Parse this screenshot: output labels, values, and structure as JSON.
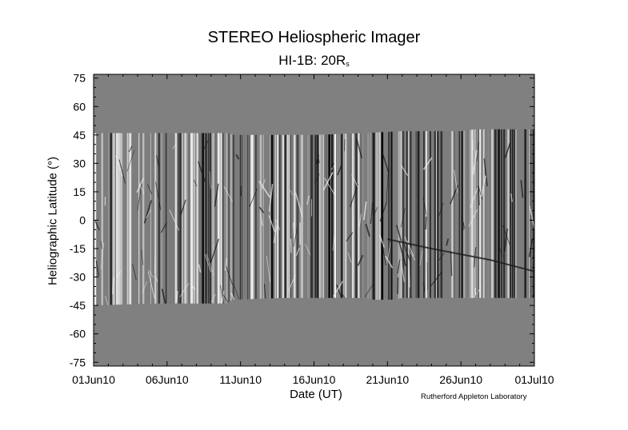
{
  "chart_data": {
    "type": "heatmap",
    "title": "STEREO Heliospheric Imager",
    "subtitle_main": "HI-1B: 20R",
    "subtitle_sub": "s",
    "xlabel": "Date (UT)",
    "ylabel": "Heliographic Latitude (°)",
    "credit": "Rutherford Appleton Laboratory",
    "x_range": [
      "01Jun10",
      "01Jul10"
    ],
    "x_ticks": [
      "01Jun10",
      "06Jun10",
      "11Jun10",
      "16Jun10",
      "21Jun10",
      "26Jun10",
      "01Jul10"
    ],
    "y_range": [
      -77,
      77
    ],
    "y_ticks": [
      75,
      60,
      45,
      30,
      15,
      0,
      -15,
      -30,
      -45,
      -60,
      -75
    ],
    "data_coverage": {
      "description_level": "latitude band of imaged data over time",
      "upper_edge_deg": [
        {
          "day": 0,
          "lat": 46
        },
        {
          "day": 9.2,
          "lat": 46
        },
        {
          "day": 9.5,
          "lat": 45
        },
        {
          "day": 15,
          "lat": 45
        },
        {
          "day": 18.5,
          "lat": 46
        },
        {
          "day": 21,
          "lat": 47
        },
        {
          "day": 25,
          "lat": 47
        },
        {
          "day": 26,
          "lat": 48
        },
        {
          "day": 30,
          "lat": 48
        }
      ],
      "lower_edge_deg": [
        {
          "day": 0,
          "lat": -45
        },
        {
          "day": 4,
          "lat": -44
        },
        {
          "day": 9,
          "lat": -44
        },
        {
          "day": 9.5,
          "lat": -42
        },
        {
          "day": 13,
          "lat": -41
        },
        {
          "day": 18,
          "lat": -41
        },
        {
          "day": 19.2,
          "lat": -42
        },
        {
          "day": 20.5,
          "lat": -42
        },
        {
          "day": 21,
          "lat": -41
        },
        {
          "day": 30,
          "lat": -41
        }
      ]
    },
    "colors": {
      "background_gray": "#808080",
      "streak_dark": "#000000",
      "streak_light": "#ffffff"
    },
    "colormap": "grayscale"
  }
}
